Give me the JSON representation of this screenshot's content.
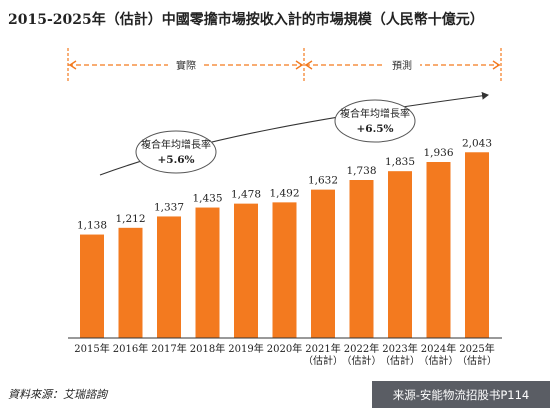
{
  "chart_data": {
    "type": "bar",
    "title": "2015-2025年（估計）中國零擔市場按收入計的市場規模（人民幣十億元）",
    "categories": [
      [
        "2015年"
      ],
      [
        "2016年"
      ],
      [
        "2017年"
      ],
      [
        "2018年"
      ],
      [
        "2019年"
      ],
      [
        "2020年"
      ],
      [
        "2021年",
        "（估計）"
      ],
      [
        "2022年",
        "（估計）"
      ],
      [
        "2023年",
        "（估計）"
      ],
      [
        "2024年",
        "（估計）"
      ],
      [
        "2025年",
        "（估計）"
      ]
    ],
    "values": [
      1138,
      1212,
      1337,
      1435,
      1478,
      1492,
      1632,
      1738,
      1835,
      1936,
      2043
    ],
    "value_labels": [
      "1,138",
      "1,212",
      "1,337",
      "1,435",
      "1,478",
      "1,492",
      "1,632",
      "1,738",
      "1,835",
      "1,936",
      "2,043"
    ],
    "bar_color": "#f37a1f",
    "ylim": [
      0,
      2200
    ],
    "grid": false,
    "sections": [
      {
        "label": "實際",
        "from_index": 0,
        "to_index": 5
      },
      {
        "label": "預測",
        "from_index": 6,
        "to_index": 10
      }
    ],
    "annotations": [
      {
        "label": "複合年均增長率",
        "value": "+5.6%"
      },
      {
        "label": "複合年均增長率",
        "value": "+6.5%"
      }
    ],
    "source": "資料來源：艾瑞諮詢",
    "watermark": "来源-安能物流招股书P114"
  }
}
